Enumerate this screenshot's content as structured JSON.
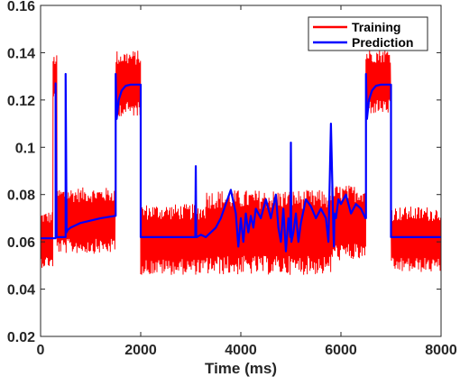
{
  "chart_data": {
    "type": "line",
    "title": "",
    "xlabel": "Time (ms)",
    "ylabel": "",
    "xlim": [
      0,
      8000
    ],
    "ylim": [
      0.02,
      0.16
    ],
    "x_ticks": [
      0,
      2000,
      4000,
      6000,
      8000
    ],
    "y_ticks": [
      0.02,
      0.04,
      0.06,
      0.08,
      0.1,
      0.12,
      0.14,
      0.16
    ],
    "x_tick_labels": [
      "0",
      "2000",
      "4000",
      "6000",
      "8000"
    ],
    "y_tick_labels": [
      "0.02",
      "0.04",
      "0.06",
      "0.08",
      "0.1",
      "0.12",
      "0.14",
      "0.16"
    ],
    "grid": false,
    "legend_position": "top-right",
    "series": [
      {
        "name": "Training",
        "color": "#ff0000",
        "style": "noisy band",
        "segments": [
          {
            "x_start": 0,
            "x_end": 250,
            "mean": 0.061,
            "spread": 0.012
          },
          {
            "x_start": 250,
            "x_end": 330,
            "mean": 0.129,
            "spread": 0.01
          },
          {
            "x_start": 330,
            "x_end": 1500,
            "mean": 0.069,
            "spread": 0.014
          },
          {
            "x_start": 1500,
            "x_end": 2000,
            "mean": 0.127,
            "spread": 0.014
          },
          {
            "x_start": 2000,
            "x_end": 3300,
            "mean": 0.061,
            "spread": 0.015
          },
          {
            "x_start": 3300,
            "x_end": 5800,
            "mean": 0.064,
            "spread": 0.018
          },
          {
            "x_start": 5800,
            "x_end": 6500,
            "mean": 0.068,
            "spread": 0.016
          },
          {
            "x_start": 6500,
            "x_end": 7000,
            "mean": 0.128,
            "spread": 0.014
          },
          {
            "x_start": 7000,
            "x_end": 8000,
            "mean": 0.061,
            "spread": 0.014
          }
        ]
      },
      {
        "name": "Prediction",
        "color": "#0000ff",
        "x": [
          0,
          300,
          300,
          310,
          320,
          320,
          500,
          500,
          520,
          540,
          600,
          800,
          1000,
          1200,
          1495,
          1500,
          1500,
          1520,
          1560,
          1620,
          1700,
          1800,
          1995,
          2000,
          2000,
          3090,
          3100,
          3110,
          3120,
          3200,
          3300,
          3400,
          3500,
          3600,
          3700,
          3800,
          3900,
          3950,
          4000,
          4050,
          4100,
          4150,
          4200,
          4250,
          4300,
          4400,
          4500,
          4600,
          4700,
          4750,
          4800,
          4850,
          4900,
          4950,
          4990,
          5000,
          5010,
          5050,
          5100,
          5150,
          5200,
          5300,
          5400,
          5500,
          5600,
          5700,
          5750,
          5800,
          5850,
          5860,
          5870,
          5900,
          5950,
          6000,
          6100,
          6200,
          6300,
          6400,
          6490,
          6500,
          6500,
          6520,
          6560,
          6620,
          6700,
          6800,
          6995,
          7000,
          7000,
          7500,
          8000
        ],
        "y": [
          0.0615,
          0.0615,
          0.127,
          0.095,
          0.062,
          0.062,
          0.062,
          0.131,
          0.064,
          0.065,
          0.066,
          0.068,
          0.069,
          0.07,
          0.071,
          0.071,
          0.131,
          0.112,
          0.12,
          0.124,
          0.126,
          0.1265,
          0.1265,
          0.1265,
          0.062,
          0.062,
          0.092,
          0.062,
          0.062,
          0.063,
          0.062,
          0.064,
          0.066,
          0.07,
          0.076,
          0.082,
          0.072,
          0.058,
          0.07,
          0.06,
          0.072,
          0.064,
          0.071,
          0.066,
          0.074,
          0.07,
          0.078,
          0.07,
          0.08,
          0.066,
          0.06,
          0.074,
          0.056,
          0.07,
          0.062,
          0.102,
          0.06,
          0.064,
          0.072,
          0.06,
          0.068,
          0.078,
          0.075,
          0.07,
          0.074,
          0.07,
          0.06,
          0.11,
          0.064,
          0.058,
          0.072,
          0.07,
          0.078,
          0.076,
          0.08,
          0.072,
          0.076,
          0.074,
          0.07,
          0.07,
          0.131,
          0.112,
          0.12,
          0.124,
          0.126,
          0.1265,
          0.1265,
          0.1265,
          0.062,
          0.062,
          0.062
        ]
      }
    ]
  }
}
